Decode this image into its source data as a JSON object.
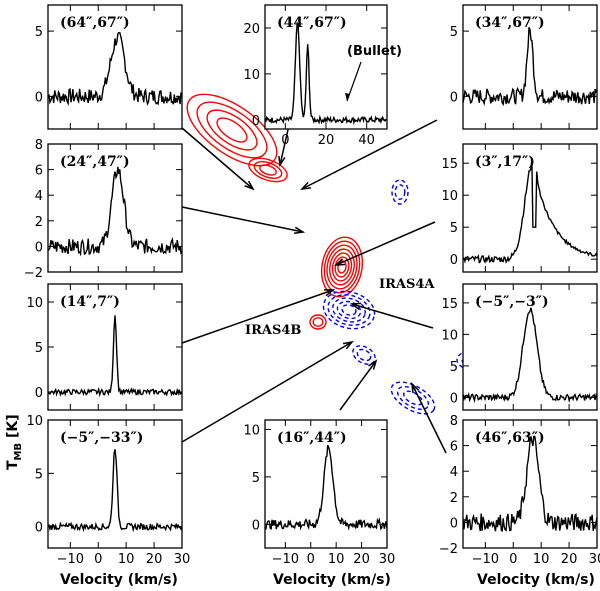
{
  "chart_data": {
    "type": "line",
    "description_label": "CO spectra around IRAS4A/4B with contour map",
    "xlabel": "Velocity (km/s)",
    "ylabel": "T_MB [K]",
    "ylabel_main": "T",
    "ylabel_sub": "MB",
    "ylabel_unit": " [K]",
    "center_map": {
      "sources": [
        "IRAS4A",
        "IRAS4B"
      ],
      "contour_colors": {
        "red": "#ff0000",
        "blue": "#0000ff"
      }
    },
    "panels": [
      {
        "id": "p64_67",
        "label": "(64″,67″)",
        "xlim": [
          -18,
          30
        ],
        "ylim": [
          -2.5,
          7
        ],
        "yticks": [
          0,
          5
        ],
        "xticks": [],
        "peak_v": 7,
        "peak_T": 4.5,
        "width": 3.5,
        "noise": 0.6
      },
      {
        "id": "p44_67",
        "label": "(44″,67″)",
        "xlim": [
          -10,
          50
        ],
        "ylim": [
          -2,
          25
        ],
        "yticks": [
          0,
          10,
          20
        ],
        "xticks": [
          0,
          20,
          40
        ],
        "peak_v": 6,
        "peak_T": 21,
        "width": 1.5,
        "noise": 0.6,
        "second_peak_v": 11,
        "second_peak_T": 16,
        "annotation": "(Bullet)"
      },
      {
        "id": "p34_67",
        "label": "(34″,67″)",
        "xlim": [
          -18,
          30
        ],
        "ylim": [
          -2.5,
          7
        ],
        "yticks": [
          0,
          5
        ],
        "xticks": [],
        "peak_v": 6,
        "peak_T": 5,
        "width": 1.5,
        "noise": 0.6
      },
      {
        "id": "p24_47",
        "label": "(24″,47″)",
        "xlim": [
          -18,
          30
        ],
        "ylim": [
          -2,
          8
        ],
        "yticks": [
          -2,
          0,
          2,
          4,
          6,
          8
        ],
        "xticks": [],
        "peak_v": 7,
        "peak_T": 6,
        "width": 3,
        "noise": 0.6
      },
      {
        "id": "p3_17",
        "label": "(3″,17″)",
        "xlim": [
          -18,
          30
        ],
        "ylim": [
          -2,
          18
        ],
        "yticks": [
          0,
          5,
          10,
          15
        ],
        "xticks": [],
        "peak_v": 7,
        "peak_T": 15,
        "width": 4,
        "noise": 0.5
      },
      {
        "id": "p14_7",
        "label": "(14″,7″)",
        "xlim": [
          -18,
          30
        ],
        "ylim": [
          -2,
          12
        ],
        "yticks": [
          0,
          5,
          10
        ],
        "xticks": [],
        "peak_v": 6,
        "peak_T": 8.5,
        "width": 0.8,
        "noise": 0.3
      },
      {
        "id": "pm5_m3",
        "label": "(−5″,−3″)",
        "xlim": [
          -18,
          30
        ],
        "ylim": [
          -2,
          18
        ],
        "yticks": [
          0,
          5,
          10,
          15
        ],
        "xticks": [],
        "peak_v": 6,
        "peak_T": 14,
        "width": 3.5,
        "noise": 0.5
      },
      {
        "id": "pm5_m33",
        "label": "(−5″,−33″)",
        "xlim": [
          -18,
          30
        ],
        "ylim": [
          -2,
          10
        ],
        "yticks": [
          0,
          5,
          10
        ],
        "xticks": [
          -10,
          0,
          10,
          20,
          30
        ],
        "peak_v": 6,
        "peak_T": 7.5,
        "width": 1,
        "noise": 0.3
      },
      {
        "id": "p16_44",
        "label": "(16″,44″)",
        "xlim": [
          -18,
          30
        ],
        "ylim": [
          -2.5,
          11
        ],
        "yticks": [
          0,
          5,
          10
        ],
        "xticks": [
          -10,
          0,
          10,
          20,
          30
        ],
        "peak_v": 7,
        "peak_T": 8,
        "width": 2.5,
        "noise": 0.5
      },
      {
        "id": "p46_63",
        "label": "(46″,63″)",
        "xlim": [
          -18,
          30
        ],
        "ylim": [
          -2,
          8
        ],
        "yticks": [
          -2,
          0,
          2,
          4,
          6,
          8
        ],
        "xticks": [
          -10,
          0,
          10,
          20,
          30
        ],
        "peak_v": 7,
        "peak_T": 6.5,
        "width": 3,
        "noise": 0.7
      }
    ]
  }
}
